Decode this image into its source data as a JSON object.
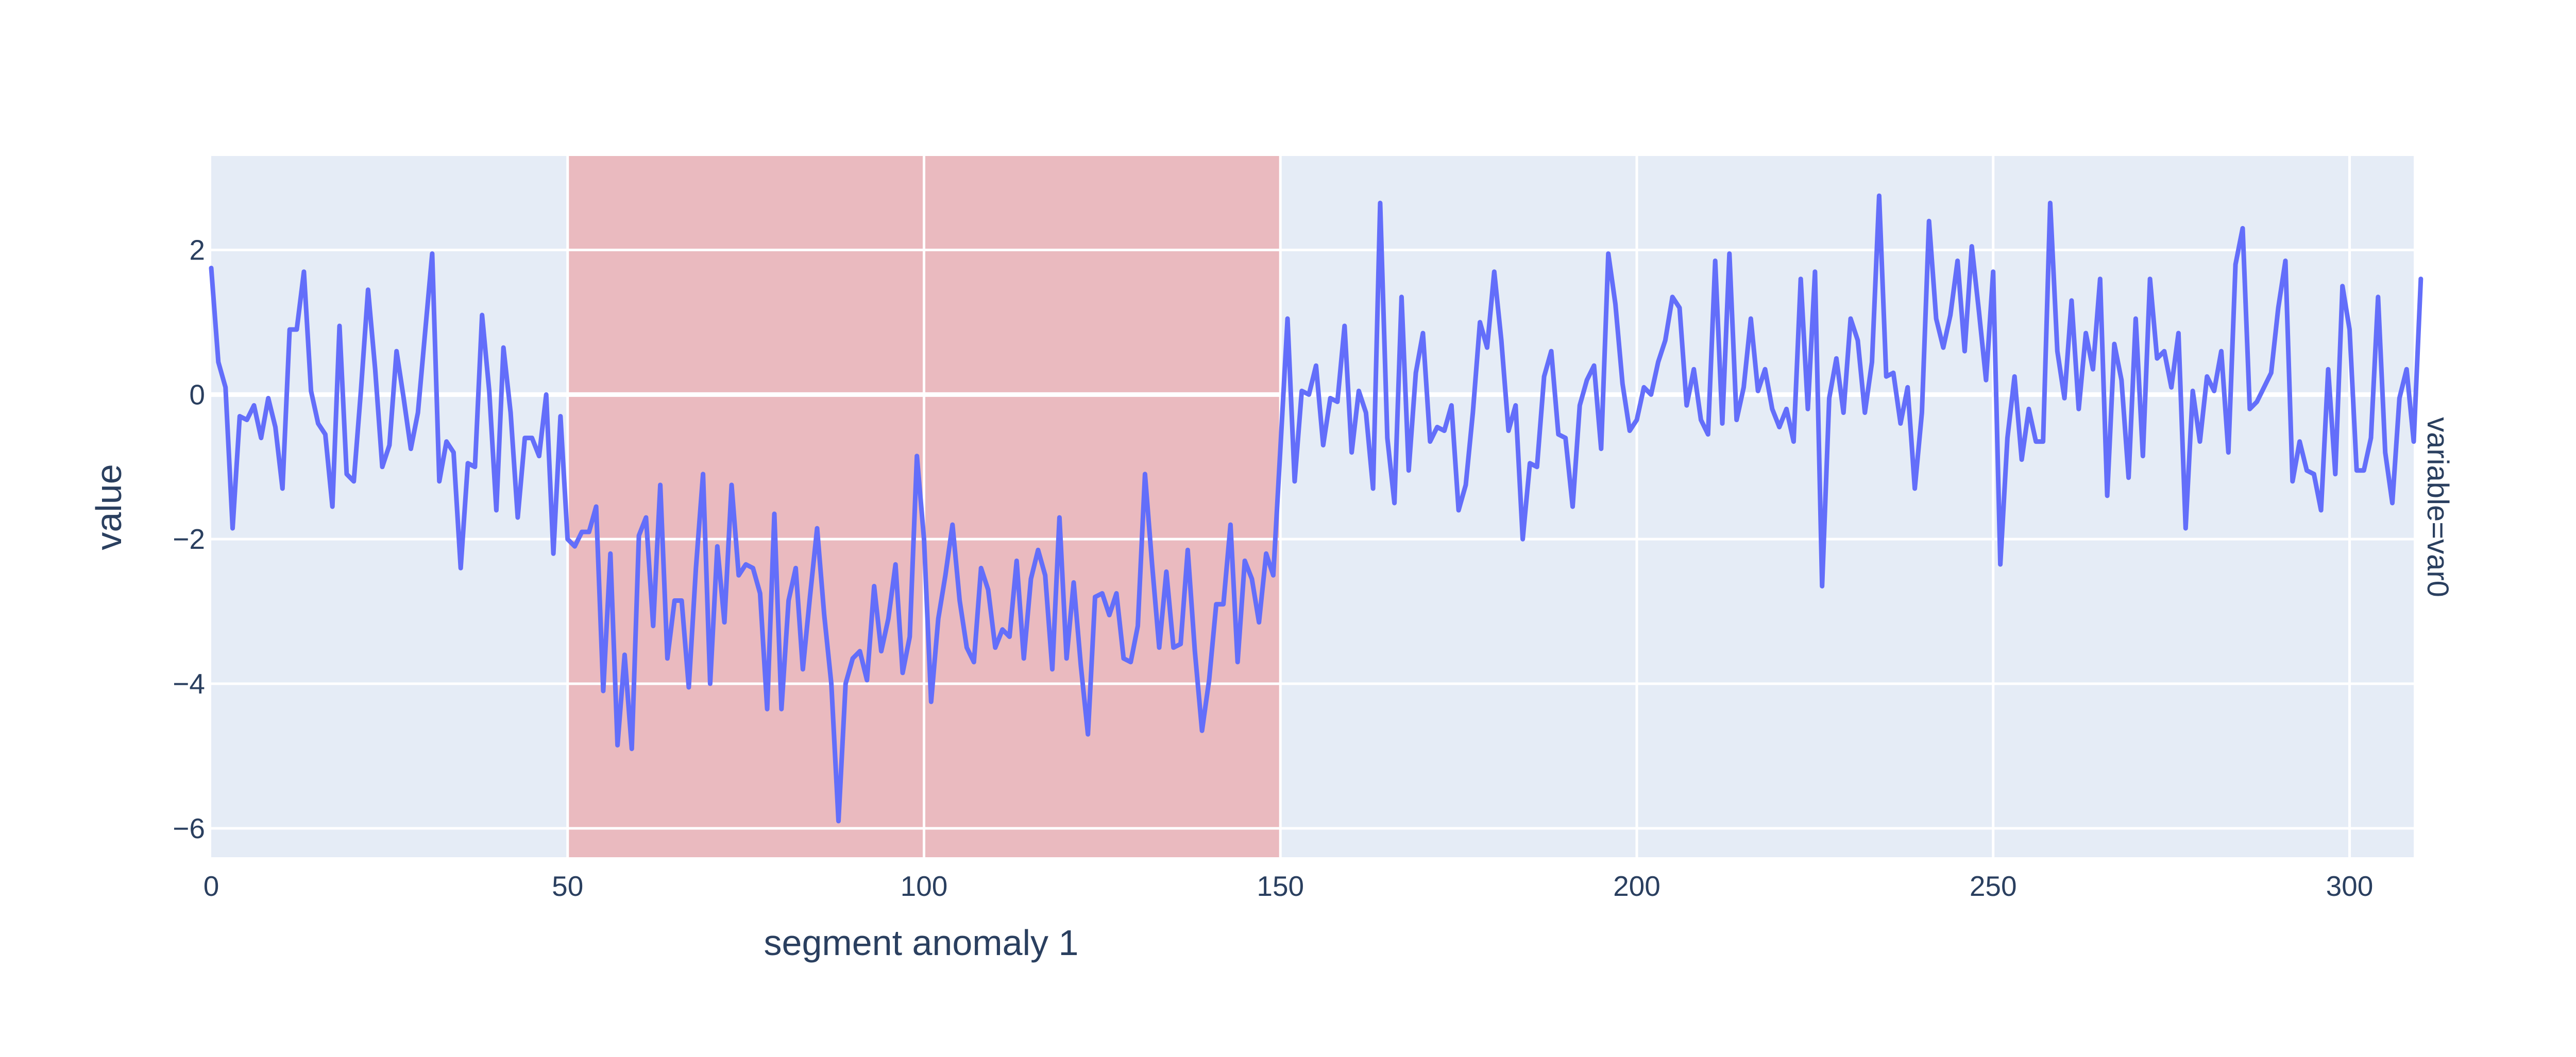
{
  "chart_data": {
    "type": "line",
    "title": "",
    "xlabel": "segment anomaly 1",
    "ylabel": "value",
    "facet_label": "variable=var0",
    "xlim": [
      0,
      309
    ],
    "ylim": [
      -6.4,
      3.3
    ],
    "x_ticks": [
      0,
      50,
      100,
      150,
      200,
      250,
      300
    ],
    "y_ticks": [
      -6,
      -4,
      -2,
      0,
      2
    ],
    "grid": true,
    "legend": "none",
    "highlight_region": {
      "x0": 50,
      "x1": 150,
      "color": "#eababf"
    },
    "colors": {
      "plot_background": "#e5ecf6",
      "grid": "#ffffff",
      "line": "#636efa",
      "text": "#2a3f5f",
      "highlight": "#eababf"
    },
    "series": [
      {
        "x_start": 0,
        "x_step": 1,
        "values": [
          1.75,
          0.45,
          0.1,
          -1.85,
          -0.3,
          -0.35,
          -0.15,
          -0.6,
          -0.05,
          -0.45,
          -1.3,
          0.9,
          0.9,
          1.7,
          0.05,
          -0.4,
          -0.55,
          -1.55,
          0.95,
          -1.1,
          -1.2,
          0.05,
          1.45,
          0.35,
          -1.0,
          -0.7,
          0.6,
          -0.05,
          -0.75,
          -0.25,
          0.85,
          1.95,
          -1.2,
          -0.65,
          -0.8,
          -2.4,
          -0.95,
          -1.0,
          1.1,
          0.05,
          -1.6,
          0.65,
          -0.25,
          -1.7,
          -0.6,
          -0.6,
          -0.85,
          0.0,
          -2.2,
          -0.3,
          -2.0,
          -2.1,
          -1.9,
          -1.9,
          -1.55,
          -4.1,
          -2.2,
          -4.85,
          -3.6,
          -4.9,
          -1.95,
          -1.7,
          -3.2,
          -1.25,
          -3.65,
          -2.85,
          -2.85,
          -4.05,
          -2.4,
          -1.1,
          -4.0,
          -2.1,
          -3.15,
          -1.25,
          -2.5,
          -2.35,
          -2.4,
          -2.75,
          -4.35,
          -1.65,
          -4.35,
          -2.85,
          -2.4,
          -3.8,
          -2.8,
          -1.85,
          -3.05,
          -4.0,
          -5.9,
          -4.0,
          -3.65,
          -3.55,
          -3.95,
          -2.65,
          -3.55,
          -3.1,
          -2.35,
          -3.85,
          -3.35,
          -0.85,
          -2.0,
          -4.25,
          -3.1,
          -2.5,
          -1.8,
          -2.85,
          -3.5,
          -3.7,
          -2.4,
          -2.7,
          -3.5,
          -3.25,
          -3.35,
          -2.3,
          -3.65,
          -2.55,
          -2.15,
          -2.5,
          -3.8,
          -1.7,
          -3.65,
          -2.6,
          -3.75,
          -4.7,
          -2.8,
          -2.75,
          -3.05,
          -2.75,
          -3.65,
          -3.7,
          -3.2,
          -1.1,
          -2.35,
          -3.5,
          -2.45,
          -3.5,
          -3.45,
          -2.15,
          -3.55,
          -4.65,
          -3.95,
          -2.9,
          -2.9,
          -1.8,
          -3.7,
          -2.3,
          -2.55,
          -3.15,
          -2.2,
          -2.5,
          -0.75,
          1.05,
          -1.2,
          0.05,
          0.0,
          0.4,
          -0.7,
          -0.05,
          -0.1,
          0.95,
          -0.8,
          0.05,
          -0.25,
          -1.3,
          2.65,
          -0.6,
          -1.5,
          1.35,
          -1.05,
          0.3,
          0.85,
          -0.65,
          -0.45,
          -0.5,
          -0.15,
          -1.6,
          -1.25,
          -0.25,
          1.0,
          0.65,
          1.7,
          0.75,
          -0.5,
          -0.15,
          -2.0,
          -0.95,
          -1.0,
          0.25,
          0.6,
          -0.55,
          -0.6,
          -1.55,
          -0.15,
          0.2,
          0.4,
          -0.75,
          1.95,
          1.25,
          0.15,
          -0.5,
          -0.35,
          0.1,
          0.0,
          0.45,
          0.75,
          1.35,
          1.2,
          -0.15,
          0.35,
          -0.35,
          -0.55,
          1.85,
          -0.4,
          1.95,
          -0.35,
          0.1,
          1.05,
          0.05,
          0.35,
          -0.2,
          -0.45,
          -0.2,
          -0.65,
          1.6,
          -0.2,
          1.7,
          -2.65,
          -0.05,
          0.5,
          -0.25,
          1.05,
          0.75,
          -0.25,
          0.45,
          2.75,
          0.25,
          0.3,
          -0.4,
          0.1,
          -1.3,
          -0.25,
          2.4,
          1.05,
          0.65,
          1.1,
          1.85,
          0.6,
          2.05,
          1.15,
          0.2,
          1.7,
          -2.35,
          -0.6,
          0.25,
          -0.9,
          -0.2,
          -0.65,
          -0.65,
          2.65,
          0.6,
          -0.05,
          1.3,
          -0.2,
          0.85,
          0.35,
          1.6,
          -1.4,
          0.7,
          0.2,
          -1.15,
          1.05,
          -0.85,
          1.6,
          0.5,
          0.6,
          0.1,
          0.85,
          -1.85,
          0.05,
          -0.65,
          0.25,
          0.05,
          0.6,
          -0.8,
          1.8,
          2.3,
          -0.2,
          -0.1,
          0.1,
          0.3,
          1.2,
          1.85,
          -1.2,
          -0.65,
          -1.05,
          -1.1,
          -1.6,
          0.35,
          -1.1,
          1.5,
          0.9,
          -1.05,
          -1.05,
          -0.6,
          1.35,
          -0.8,
          -1.5,
          -0.05,
          0.35,
          -0.65,
          1.6
        ]
      }
    ]
  }
}
